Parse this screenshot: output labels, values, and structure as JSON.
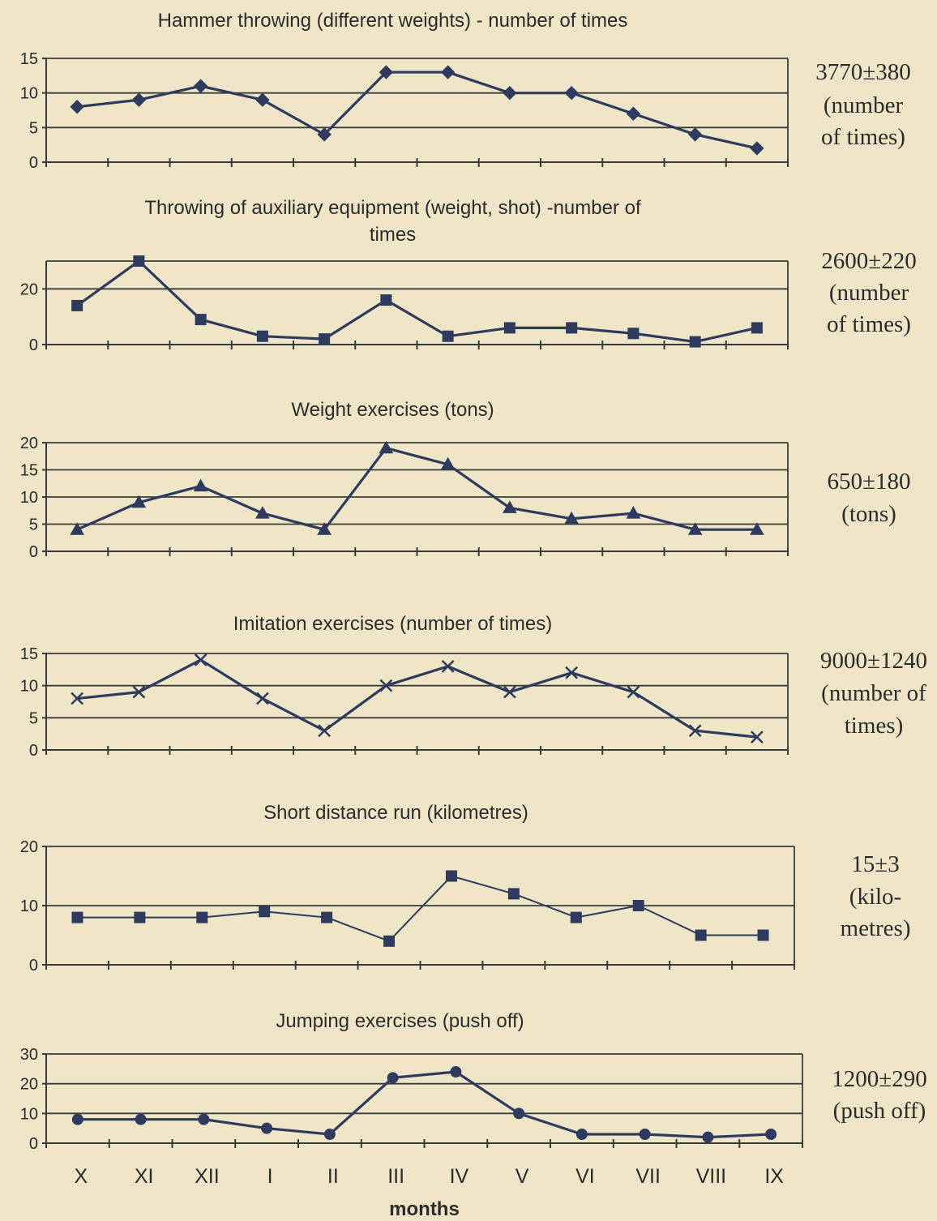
{
  "months_label": "months",
  "chart_data": [
    {
      "type": "line",
      "title": "Hammer throwing (different weights) - number of times",
      "categories": [
        "X",
        "XI",
        "XII",
        "I",
        "II",
        "III",
        "IV",
        "V",
        "VI",
        "VII",
        "VIII",
        "IX"
      ],
      "values": [
        8,
        9,
        11,
        9,
        4,
        13,
        13,
        10,
        10,
        7,
        4,
        2
      ],
      "yticks": [
        0,
        5,
        10,
        15
      ],
      "ylim": [
        0,
        15
      ],
      "side_label": [
        "3770±380",
        "(number",
        "of times)"
      ],
      "marker": "diamond",
      "color": "#2f3a5f"
    },
    {
      "type": "line",
      "title": "Throwing of auxiliary equipment (weight, shot) -number of times",
      "categories": [
        "X",
        "XI",
        "XII",
        "I",
        "II",
        "III",
        "IV",
        "V",
        "VI",
        "VII",
        "VIII",
        "IX"
      ],
      "values": [
        14,
        30,
        9,
        3,
        2,
        16,
        3,
        6,
        6,
        4,
        1,
        6
      ],
      "yticks": [
        0,
        20
      ],
      "ylim": [
        0,
        30
      ],
      "side_label": [
        "2600±220",
        "(number",
        "of times)"
      ],
      "marker": "square",
      "color": "#2f3a5f"
    },
    {
      "type": "line",
      "title": "Weight exercises (tons)",
      "categories": [
        "X",
        "XI",
        "XII",
        "I",
        "II",
        "III",
        "IV",
        "V",
        "VI",
        "VII",
        "VIII",
        "IX"
      ],
      "values": [
        4,
        9,
        12,
        7,
        4,
        19,
        16,
        8,
        6,
        7,
        4,
        4
      ],
      "yticks": [
        0,
        5,
        10,
        15,
        20
      ],
      "ylim": [
        0,
        20
      ],
      "side_label": [
        "650±180",
        "(tons)"
      ],
      "marker": "triangle",
      "color": "#2f3a5f"
    },
    {
      "type": "line",
      "title": "Imitation exercises (number of times)",
      "categories": [
        "X",
        "XI",
        "XII",
        "I",
        "II",
        "III",
        "IV",
        "V",
        "VI",
        "VII",
        "VIII",
        "IX"
      ],
      "values": [
        8,
        9,
        14,
        8,
        3,
        10,
        13,
        9,
        12,
        9,
        3,
        2
      ],
      "yticks": [
        0,
        5,
        10,
        15
      ],
      "ylim": [
        0,
        15
      ],
      "side_label": [
        "9000±1240",
        "(number of",
        "times)"
      ],
      "marker": "x",
      "color": "#2f3a5f"
    },
    {
      "type": "line",
      "title": "Short distance run (kilometres)",
      "categories": [
        "X",
        "XI",
        "XII",
        "I",
        "II",
        "III",
        "IV",
        "V",
        "VI",
        "VII",
        "VIII",
        "IX"
      ],
      "values": [
        8,
        8,
        8,
        9,
        8,
        4,
        15,
        12,
        8,
        10,
        5,
        5
      ],
      "yticks": [
        0,
        10,
        20
      ],
      "ylim": [
        0,
        20
      ],
      "side_label": [
        "15±3",
        "(kilo-",
        "metres)"
      ],
      "marker": "square",
      "color": "#2f3a5f"
    },
    {
      "type": "line",
      "title": "Jumping exercises (push off)",
      "categories": [
        "X",
        "XI",
        "XII",
        "I",
        "II",
        "III",
        "IV",
        "V",
        "VI",
        "VII",
        "VIII",
        "IX"
      ],
      "values": [
        8,
        8,
        8,
        5,
        3,
        22,
        24,
        10,
        3,
        3,
        2,
        3
      ],
      "yticks": [
        0,
        10,
        20,
        30
      ],
      "ylim": [
        0,
        30
      ],
      "side_label": [
        "1200±290",
        "(push off)"
      ],
      "marker": "circle",
      "color": "#2f3a5f"
    }
  ]
}
